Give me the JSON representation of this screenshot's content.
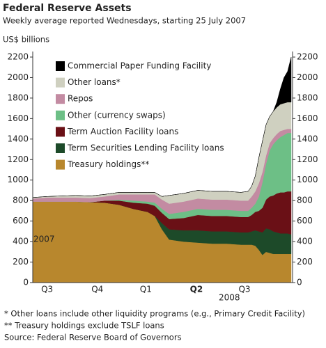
{
  "chart_data": {
    "type": "area",
    "stacked": true,
    "title": "Federal Reserve Assets",
    "subtitle": "Weekly average reported Wednesdays, starting 25 July 2007",
    "y_label": "US$ billions",
    "x": [
      0,
      4,
      8,
      12,
      16,
      20,
      24,
      28,
      32,
      34,
      36,
      38,
      42,
      46,
      50,
      54,
      58,
      60,
      61,
      62,
      63,
      64,
      65,
      66,
      67,
      68,
      69,
      70,
      71,
      72
    ],
    "xlim": [
      0,
      72
    ],
    "xticks": [
      {
        "value": 4,
        "label": "Q3"
      },
      {
        "value": 18,
        "label": "Q4"
      },
      {
        "value": 31.5,
        "label": "Q1"
      },
      {
        "value": 45.6,
        "label": "Q2"
      },
      {
        "value": 59,
        "label": "Q3"
      }
    ],
    "year_labels": [
      "2007",
      "2008"
    ],
    "ylim": [
      0,
      2200
    ],
    "yticks": [
      0,
      200,
      400,
      600,
      800,
      1000,
      1200,
      1400,
      1600,
      1800,
      2000,
      2200
    ],
    "series": [
      {
        "name": "Treasury holdings**",
        "color": "#b8872d",
        "values": [
          790,
          790,
          790,
          790,
          785,
          780,
          760,
          720,
          690,
          650,
          520,
          420,
          400,
          390,
          380,
          380,
          370,
          370,
          370,
          360,
          320,
          270,
          300,
          290,
          280,
          280,
          280,
          280,
          280,
          280
        ]
      },
      {
        "name": "Term Securities Lending Facility loans",
        "color": "#1d4a29",
        "values": [
          0,
          0,
          0,
          0,
          0,
          0,
          0,
          0,
          0,
          0,
          60,
          100,
          110,
          120,
          120,
          120,
          120,
          120,
          130,
          150,
          180,
          220,
          230,
          230,
          220,
          210,
          200,
          200,
          200,
          190
        ]
      },
      {
        "name": "Term Auction Facility loans",
        "color": "#6a1016",
        "values": [
          0,
          0,
          0,
          0,
          0,
          20,
          40,
          60,
          80,
          100,
          100,
          100,
          120,
          150,
          150,
          150,
          150,
          150,
          160,
          180,
          200,
          240,
          280,
          320,
          350,
          380,
          400,
          400,
          410,
          420
        ]
      },
      {
        "name": "Other (currency swaps)",
        "color": "#6dbf86",
        "values": [
          0,
          0,
          0,
          0,
          0,
          0,
          10,
          20,
          20,
          30,
          40,
          50,
          60,
          60,
          60,
          60,
          60,
          60,
          70,
          80,
          140,
          250,
          350,
          450,
          500,
          520,
          540,
          560,
          570,
          570
        ]
      },
      {
        "name": "Repos",
        "color": "#c38ba2",
        "values": [
          30,
          40,
          40,
          40,
          40,
          40,
          50,
          60,
          70,
          80,
          90,
          100,
          100,
          100,
          100,
          100,
          100,
          100,
          110,
          120,
          130,
          100,
          80,
          70,
          60,
          60,
          60,
          50,
          40,
          40
        ]
      },
      {
        "name": "Other loans*",
        "color": "#cfd0c0",
        "values": [
          10,
          10,
          15,
          20,
          20,
          20,
          20,
          20,
          20,
          20,
          30,
          80,
          80,
          80,
          80,
          80,
          80,
          90,
          100,
          150,
          250,
          300,
          300,
          260,
          260,
          260,
          260,
          260,
          260,
          260
        ]
      },
      {
        "name": "Commercial Paper Funding Facility",
        "color": "#000000",
        "values": [
          0,
          0,
          0,
          0,
          0,
          0,
          0,
          0,
          0,
          0,
          0,
          0,
          0,
          0,
          0,
          0,
          0,
          0,
          0,
          0,
          0,
          0,
          0,
          0,
          0,
          50,
          150,
          250,
          300,
          440
        ]
      }
    ],
    "footnotes": [
      "*   Other loans include other liquidity programs (e.g., Primary Credit Facility)",
      "** Treasury holdings exclude TSLF loans",
      "Source: Federal Reserve Board of Governors"
    ]
  }
}
